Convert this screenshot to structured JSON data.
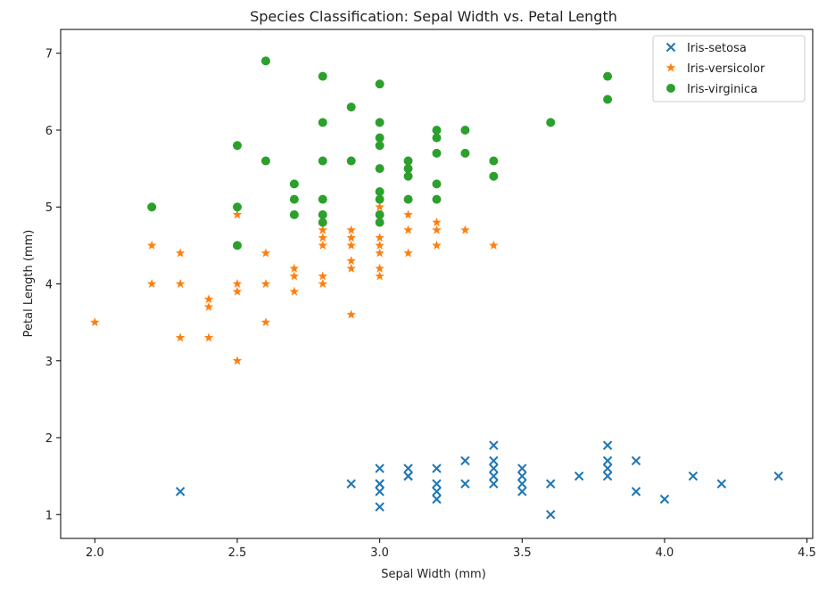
{
  "chart_data": {
    "type": "scatter",
    "title": "Species Classification: Sepal Width vs. Petal Length",
    "xlabel": "Sepal Width (mm)",
    "ylabel": "Petal Length (mm)",
    "xlim": [
      1.88,
      4.52
    ],
    "ylim": [
      0.69,
      7.31
    ],
    "xticks": [
      2.0,
      2.5,
      3.0,
      3.5,
      4.0,
      4.5
    ],
    "xtick_labels": [
      "2.0",
      "2.5",
      "3.0",
      "3.5",
      "4.0",
      "4.5"
    ],
    "yticks": [
      1,
      2,
      3,
      4,
      5,
      6,
      7
    ],
    "ytick_labels": [
      "1",
      "2",
      "3",
      "4",
      "5",
      "6",
      "7"
    ],
    "grid": false,
    "legend_position": "top-right",
    "series": [
      {
        "name": "Iris-setosa",
        "marker": "x",
        "color": "#1f77b4",
        "points": [
          [
            2.3,
            1.3
          ],
          [
            2.9,
            1.4
          ],
          [
            3.0,
            1.6
          ],
          [
            3.0,
            1.4
          ],
          [
            3.0,
            1.4
          ],
          [
            3.0,
            1.3
          ],
          [
            3.0,
            1.1
          ],
          [
            3.1,
            1.6
          ],
          [
            3.1,
            1.5
          ],
          [
            3.1,
            1.5
          ],
          [
            3.2,
            1.6
          ],
          [
            3.2,
            1.4
          ],
          [
            3.2,
            1.3
          ],
          [
            3.2,
            1.2
          ],
          [
            3.3,
            1.7
          ],
          [
            3.3,
            1.4
          ],
          [
            3.4,
            1.9
          ],
          [
            3.4,
            1.7
          ],
          [
            3.4,
            1.6
          ],
          [
            3.4,
            1.5
          ],
          [
            3.4,
            1.4
          ],
          [
            3.5,
            1.6
          ],
          [
            3.5,
            1.5
          ],
          [
            3.5,
            1.4
          ],
          [
            3.5,
            1.3
          ],
          [
            3.6,
            1.4
          ],
          [
            3.6,
            1.0
          ],
          [
            3.7,
            1.5
          ],
          [
            3.8,
            1.9
          ],
          [
            3.8,
            1.7
          ],
          [
            3.8,
            1.6
          ],
          [
            3.8,
            1.5
          ],
          [
            3.9,
            1.7
          ],
          [
            3.9,
            1.3
          ],
          [
            4.0,
            1.2
          ],
          [
            4.1,
            1.5
          ],
          [
            4.2,
            1.4
          ],
          [
            4.4,
            1.5
          ]
        ]
      },
      {
        "name": "Iris-versicolor",
        "marker": "star",
        "color": "#ff7f0e",
        "points": [
          [
            2.0,
            3.5
          ],
          [
            2.2,
            4.5
          ],
          [
            2.2,
            4.0
          ],
          [
            2.3,
            4.4
          ],
          [
            2.3,
            4.0
          ],
          [
            2.3,
            3.3
          ],
          [
            2.4,
            3.8
          ],
          [
            2.4,
            3.7
          ],
          [
            2.4,
            3.3
          ],
          [
            2.5,
            4.9
          ],
          [
            2.5,
            4.0
          ],
          [
            2.5,
            3.9
          ],
          [
            2.5,
            3.0
          ],
          [
            2.6,
            4.4
          ],
          [
            2.6,
            4.0
          ],
          [
            2.6,
            3.5
          ],
          [
            2.7,
            4.2
          ],
          [
            2.7,
            4.1
          ],
          [
            2.7,
            3.9
          ],
          [
            2.8,
            4.7
          ],
          [
            2.8,
            4.6
          ],
          [
            2.8,
            4.5
          ],
          [
            2.8,
            4.1
          ],
          [
            2.8,
            4.0
          ],
          [
            2.9,
            4.7
          ],
          [
            2.9,
            4.6
          ],
          [
            2.9,
            4.5
          ],
          [
            2.9,
            4.3
          ],
          [
            2.9,
            4.2
          ],
          [
            2.9,
            3.6
          ],
          [
            3.0,
            5.0
          ],
          [
            3.0,
            4.6
          ],
          [
            3.0,
            4.5
          ],
          [
            3.0,
            4.4
          ],
          [
            3.0,
            4.2
          ],
          [
            3.0,
            4.1
          ],
          [
            3.1,
            4.9
          ],
          [
            3.1,
            4.7
          ],
          [
            3.1,
            4.4
          ],
          [
            3.2,
            4.8
          ],
          [
            3.2,
            4.7
          ],
          [
            3.2,
            4.5
          ],
          [
            3.3,
            4.7
          ],
          [
            3.4,
            4.5
          ]
        ]
      },
      {
        "name": "Iris-virginica",
        "marker": "circle",
        "color": "#2ca02c",
        "points": [
          [
            2.2,
            5.0
          ],
          [
            2.5,
            5.8
          ],
          [
            2.5,
            5.0
          ],
          [
            2.5,
            4.5
          ],
          [
            2.6,
            6.9
          ],
          [
            2.6,
            5.6
          ],
          [
            2.7,
            5.3
          ],
          [
            2.7,
            5.1
          ],
          [
            2.7,
            4.9
          ],
          [
            2.8,
            6.7
          ],
          [
            2.8,
            6.1
          ],
          [
            2.8,
            5.6
          ],
          [
            2.8,
            5.1
          ],
          [
            2.8,
            4.9
          ],
          [
            2.8,
            4.8
          ],
          [
            2.9,
            6.3
          ],
          [
            2.9,
            5.6
          ],
          [
            3.0,
            6.6
          ],
          [
            3.0,
            6.1
          ],
          [
            3.0,
            5.9
          ],
          [
            3.0,
            5.8
          ],
          [
            3.0,
            5.5
          ],
          [
            3.0,
            5.2
          ],
          [
            3.0,
            5.1
          ],
          [
            3.0,
            4.9
          ],
          [
            3.0,
            4.8
          ],
          [
            3.1,
            5.6
          ],
          [
            3.1,
            5.5
          ],
          [
            3.1,
            5.4
          ],
          [
            3.1,
            5.1
          ],
          [
            3.2,
            6.0
          ],
          [
            3.2,
            5.9
          ],
          [
            3.2,
            5.7
          ],
          [
            3.2,
            5.3
          ],
          [
            3.2,
            5.1
          ],
          [
            3.3,
            6.0
          ],
          [
            3.3,
            5.7
          ],
          [
            3.4,
            5.6
          ],
          [
            3.4,
            5.4
          ],
          [
            3.6,
            6.1
          ],
          [
            3.8,
            6.7
          ],
          [
            3.8,
            6.4
          ]
        ]
      }
    ]
  }
}
